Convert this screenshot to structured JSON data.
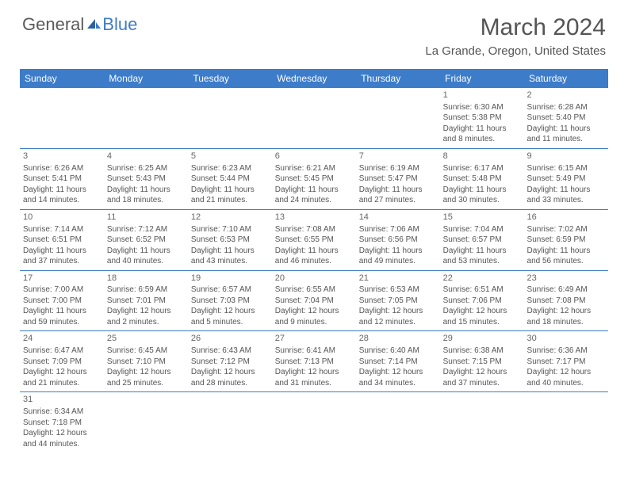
{
  "logo": {
    "part1": "General",
    "part2": "Blue"
  },
  "title": "March 2024",
  "location": "La Grande, Oregon, United States",
  "style": {
    "header_bg": "#3d7cc9",
    "header_text": "#ffffff",
    "cell_text": "#555555",
    "border_color": "#3d7cc9",
    "title_fontsize": 30,
    "location_fontsize": 15,
    "dayheader_fontsize": 12,
    "cell_fontsize": 10
  },
  "day_headers": [
    "Sunday",
    "Monday",
    "Tuesday",
    "Wednesday",
    "Thursday",
    "Friday",
    "Saturday"
  ],
  "weeks": [
    [
      null,
      null,
      null,
      null,
      null,
      {
        "n": "1",
        "sr": "Sunrise: 6:30 AM",
        "ss": "Sunset: 5:38 PM",
        "dl1": "Daylight: 11 hours",
        "dl2": "and 8 minutes."
      },
      {
        "n": "2",
        "sr": "Sunrise: 6:28 AM",
        "ss": "Sunset: 5:40 PM",
        "dl1": "Daylight: 11 hours",
        "dl2": "and 11 minutes."
      }
    ],
    [
      {
        "n": "3",
        "sr": "Sunrise: 6:26 AM",
        "ss": "Sunset: 5:41 PM",
        "dl1": "Daylight: 11 hours",
        "dl2": "and 14 minutes."
      },
      {
        "n": "4",
        "sr": "Sunrise: 6:25 AM",
        "ss": "Sunset: 5:43 PM",
        "dl1": "Daylight: 11 hours",
        "dl2": "and 18 minutes."
      },
      {
        "n": "5",
        "sr": "Sunrise: 6:23 AM",
        "ss": "Sunset: 5:44 PM",
        "dl1": "Daylight: 11 hours",
        "dl2": "and 21 minutes."
      },
      {
        "n": "6",
        "sr": "Sunrise: 6:21 AM",
        "ss": "Sunset: 5:45 PM",
        "dl1": "Daylight: 11 hours",
        "dl2": "and 24 minutes."
      },
      {
        "n": "7",
        "sr": "Sunrise: 6:19 AM",
        "ss": "Sunset: 5:47 PM",
        "dl1": "Daylight: 11 hours",
        "dl2": "and 27 minutes."
      },
      {
        "n": "8",
        "sr": "Sunrise: 6:17 AM",
        "ss": "Sunset: 5:48 PM",
        "dl1": "Daylight: 11 hours",
        "dl2": "and 30 minutes."
      },
      {
        "n": "9",
        "sr": "Sunrise: 6:15 AM",
        "ss": "Sunset: 5:49 PM",
        "dl1": "Daylight: 11 hours",
        "dl2": "and 33 minutes."
      }
    ],
    [
      {
        "n": "10",
        "sr": "Sunrise: 7:14 AM",
        "ss": "Sunset: 6:51 PM",
        "dl1": "Daylight: 11 hours",
        "dl2": "and 37 minutes."
      },
      {
        "n": "11",
        "sr": "Sunrise: 7:12 AM",
        "ss": "Sunset: 6:52 PM",
        "dl1": "Daylight: 11 hours",
        "dl2": "and 40 minutes."
      },
      {
        "n": "12",
        "sr": "Sunrise: 7:10 AM",
        "ss": "Sunset: 6:53 PM",
        "dl1": "Daylight: 11 hours",
        "dl2": "and 43 minutes."
      },
      {
        "n": "13",
        "sr": "Sunrise: 7:08 AM",
        "ss": "Sunset: 6:55 PM",
        "dl1": "Daylight: 11 hours",
        "dl2": "and 46 minutes."
      },
      {
        "n": "14",
        "sr": "Sunrise: 7:06 AM",
        "ss": "Sunset: 6:56 PM",
        "dl1": "Daylight: 11 hours",
        "dl2": "and 49 minutes."
      },
      {
        "n": "15",
        "sr": "Sunrise: 7:04 AM",
        "ss": "Sunset: 6:57 PM",
        "dl1": "Daylight: 11 hours",
        "dl2": "and 53 minutes."
      },
      {
        "n": "16",
        "sr": "Sunrise: 7:02 AM",
        "ss": "Sunset: 6:59 PM",
        "dl1": "Daylight: 11 hours",
        "dl2": "and 56 minutes."
      }
    ],
    [
      {
        "n": "17",
        "sr": "Sunrise: 7:00 AM",
        "ss": "Sunset: 7:00 PM",
        "dl1": "Daylight: 11 hours",
        "dl2": "and 59 minutes."
      },
      {
        "n": "18",
        "sr": "Sunrise: 6:59 AM",
        "ss": "Sunset: 7:01 PM",
        "dl1": "Daylight: 12 hours",
        "dl2": "and 2 minutes."
      },
      {
        "n": "19",
        "sr": "Sunrise: 6:57 AM",
        "ss": "Sunset: 7:03 PM",
        "dl1": "Daylight: 12 hours",
        "dl2": "and 5 minutes."
      },
      {
        "n": "20",
        "sr": "Sunrise: 6:55 AM",
        "ss": "Sunset: 7:04 PM",
        "dl1": "Daylight: 12 hours",
        "dl2": "and 9 minutes."
      },
      {
        "n": "21",
        "sr": "Sunrise: 6:53 AM",
        "ss": "Sunset: 7:05 PM",
        "dl1": "Daylight: 12 hours",
        "dl2": "and 12 minutes."
      },
      {
        "n": "22",
        "sr": "Sunrise: 6:51 AM",
        "ss": "Sunset: 7:06 PM",
        "dl1": "Daylight: 12 hours",
        "dl2": "and 15 minutes."
      },
      {
        "n": "23",
        "sr": "Sunrise: 6:49 AM",
        "ss": "Sunset: 7:08 PM",
        "dl1": "Daylight: 12 hours",
        "dl2": "and 18 minutes."
      }
    ],
    [
      {
        "n": "24",
        "sr": "Sunrise: 6:47 AM",
        "ss": "Sunset: 7:09 PM",
        "dl1": "Daylight: 12 hours",
        "dl2": "and 21 minutes."
      },
      {
        "n": "25",
        "sr": "Sunrise: 6:45 AM",
        "ss": "Sunset: 7:10 PM",
        "dl1": "Daylight: 12 hours",
        "dl2": "and 25 minutes."
      },
      {
        "n": "26",
        "sr": "Sunrise: 6:43 AM",
        "ss": "Sunset: 7:12 PM",
        "dl1": "Daylight: 12 hours",
        "dl2": "and 28 minutes."
      },
      {
        "n": "27",
        "sr": "Sunrise: 6:41 AM",
        "ss": "Sunset: 7:13 PM",
        "dl1": "Daylight: 12 hours",
        "dl2": "and 31 minutes."
      },
      {
        "n": "28",
        "sr": "Sunrise: 6:40 AM",
        "ss": "Sunset: 7:14 PM",
        "dl1": "Daylight: 12 hours",
        "dl2": "and 34 minutes."
      },
      {
        "n": "29",
        "sr": "Sunrise: 6:38 AM",
        "ss": "Sunset: 7:15 PM",
        "dl1": "Daylight: 12 hours",
        "dl2": "and 37 minutes."
      },
      {
        "n": "30",
        "sr": "Sunrise: 6:36 AM",
        "ss": "Sunset: 7:17 PM",
        "dl1": "Daylight: 12 hours",
        "dl2": "and 40 minutes."
      }
    ],
    [
      {
        "n": "31",
        "sr": "Sunrise: 6:34 AM",
        "ss": "Sunset: 7:18 PM",
        "dl1": "Daylight: 12 hours",
        "dl2": "and 44 minutes."
      },
      null,
      null,
      null,
      null,
      null,
      null
    ]
  ]
}
